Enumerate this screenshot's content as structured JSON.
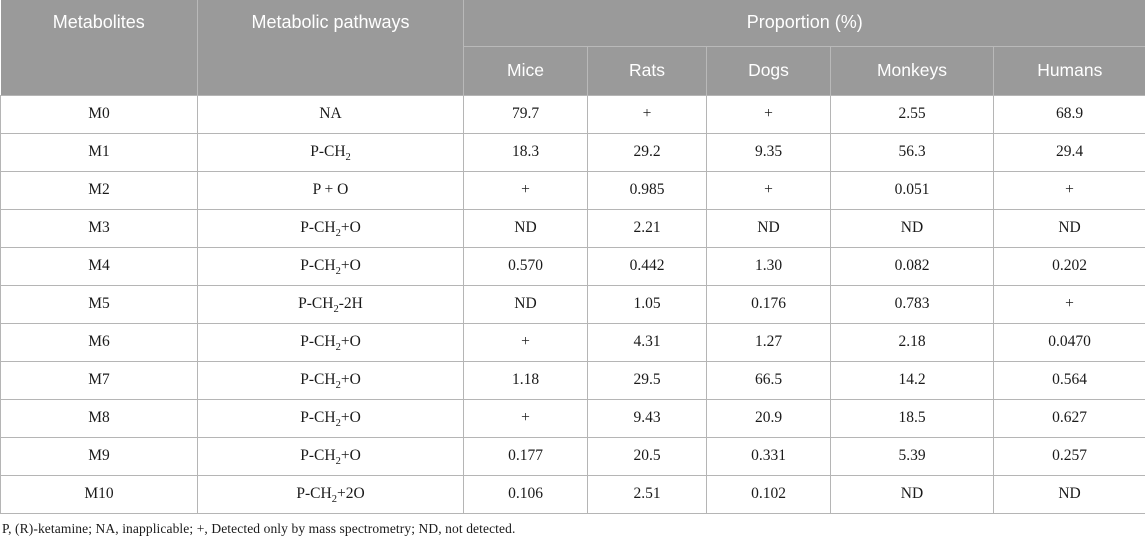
{
  "colors": {
    "header_bg": "#9a9a9a",
    "header_text": "#ffffff",
    "header_border": "#b9b9b9",
    "body_border": "#b5b5b5",
    "body_text": "#1a1a1a",
    "page_bg": "#ffffff"
  },
  "table": {
    "header": {
      "metabolites": "Metabolites",
      "pathways": "Metabolic pathways",
      "proportion_group": "Proportion (%)",
      "species": [
        "Mice",
        "Rats",
        "Dogs",
        "Monkeys",
        "Humans"
      ]
    },
    "rows": [
      {
        "metabolite": "M0",
        "pathway": {
          "pre": "NA",
          "sub": "",
          "post": ""
        },
        "values": [
          "79.7",
          "+",
          "+",
          "2.55",
          "68.9"
        ]
      },
      {
        "metabolite": "M1",
        "pathway": {
          "pre": "P-CH",
          "sub": "2",
          "post": ""
        },
        "values": [
          "18.3",
          "29.2",
          "9.35",
          "56.3",
          "29.4"
        ]
      },
      {
        "metabolite": "M2",
        "pathway": {
          "pre": "P + O",
          "sub": "",
          "post": ""
        },
        "values": [
          "+",
          "0.985",
          "+",
          "0.051",
          "+"
        ]
      },
      {
        "metabolite": "M3",
        "pathway": {
          "pre": "P-CH",
          "sub": "2",
          "post": "+O"
        },
        "values": [
          "ND",
          "2.21",
          "ND",
          "ND",
          "ND"
        ]
      },
      {
        "metabolite": "M4",
        "pathway": {
          "pre": "P-CH",
          "sub": "2",
          "post": "+O"
        },
        "values": [
          "0.570",
          "0.442",
          "1.30",
          "0.082",
          "0.202"
        ]
      },
      {
        "metabolite": "M5",
        "pathway": {
          "pre": "P-CH",
          "sub": "2",
          "post": "-2H"
        },
        "values": [
          "ND",
          "1.05",
          "0.176",
          "0.783",
          "+"
        ]
      },
      {
        "metabolite": "M6",
        "pathway": {
          "pre": "P-CH",
          "sub": "2",
          "post": "+O"
        },
        "values": [
          "+",
          "4.31",
          "1.27",
          "2.18",
          "0.0470"
        ]
      },
      {
        "metabolite": "M7",
        "pathway": {
          "pre": "P-CH",
          "sub": "2",
          "post": "+O"
        },
        "values": [
          "1.18",
          "29.5",
          "66.5",
          "14.2",
          "0.564"
        ]
      },
      {
        "metabolite": "M8",
        "pathway": {
          "pre": "P-CH",
          "sub": "2",
          "post": "+O"
        },
        "values": [
          "+",
          "9.43",
          "20.9",
          "18.5",
          "0.627"
        ]
      },
      {
        "metabolite": "M9",
        "pathway": {
          "pre": "P-CH",
          "sub": "2",
          "post": "+O"
        },
        "values": [
          "0.177",
          "20.5",
          "0.331",
          "5.39",
          "0.257"
        ]
      },
      {
        "metabolite": "M10",
        "pathway": {
          "pre": "P-CH",
          "sub": "2",
          "post": "+2O"
        },
        "values": [
          "0.106",
          "2.51",
          "0.102",
          "ND",
          "ND"
        ]
      }
    ],
    "footnote": "P, (R)-ketamine; NA, inapplicable; +, Detected only by mass spectrometry; ND, not detected."
  }
}
